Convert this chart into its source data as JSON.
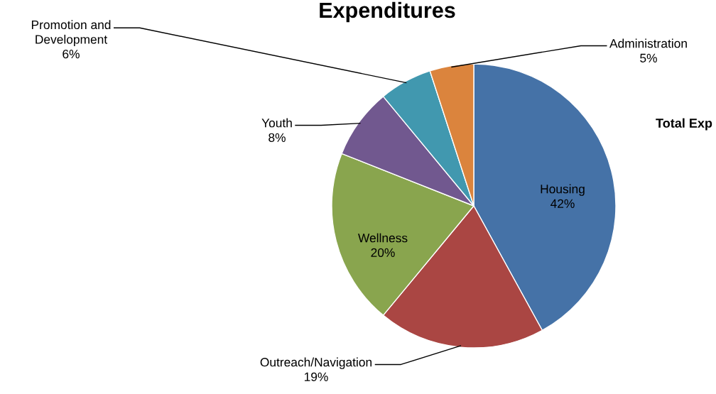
{
  "chart_data": {
    "type": "pie",
    "title": "Expenditures",
    "categories": [
      "Housing",
      "Outreach/Navigation",
      "Wellness",
      "Youth",
      "Promotion and Development",
      "Administration"
    ],
    "values": [
      42,
      19,
      20,
      8,
      6,
      5
    ],
    "colors": [
      "#4572a7",
      "#aa4643",
      "#89a54e",
      "#71588f",
      "#4198af",
      "#db843d"
    ],
    "value_labels": [
      "42%",
      "19%",
      "20%",
      "8%",
      "6%",
      "5%"
    ],
    "annotations": [
      "Total Exp"
    ]
  }
}
